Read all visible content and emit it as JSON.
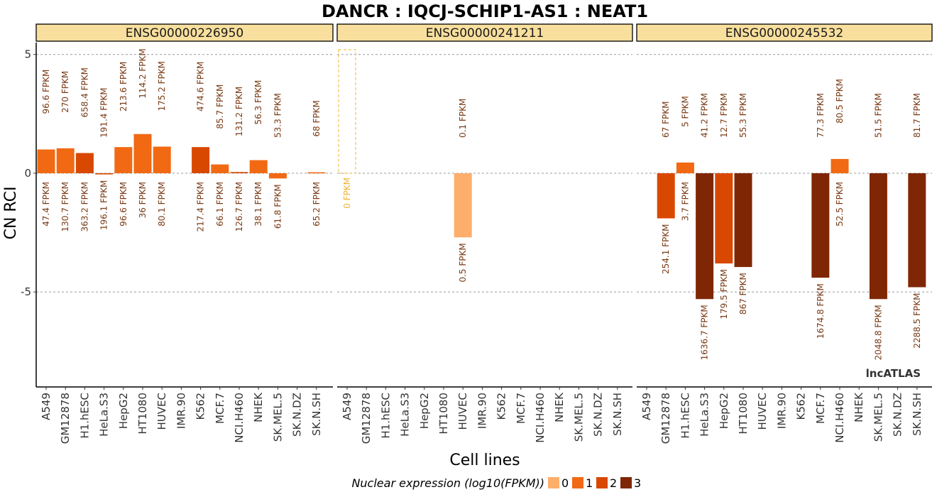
{
  "chart_data": {
    "type": "bar",
    "title": "DANCR : IQCJ-SCHIP1-AS1 : NEAT1",
    "xlabel": "Cell lines",
    "ylabel": "CN RCI",
    "ylim": [
      -9.0,
      5.5
    ],
    "yticks": [
      5,
      0,
      -5
    ],
    "ytick_labels": [
      "5",
      "0",
      "-5"
    ],
    "grid": "dashed horizontal at ticks",
    "categories": [
      "A549",
      "GM12878",
      "H1.hESC",
      "HeLa.S3",
      "HepG2",
      "HT1080",
      "HUVEC",
      "IMR.90",
      "K562",
      "MCF.7",
      "NCI.H460",
      "NHEK",
      "SK.MEL.5",
      "SK.N.DZ",
      "SK.N.SH"
    ],
    "legend": {
      "title": "Nuclear expression (log10(FPKM))",
      "position": "bottom",
      "items": [
        {
          "label": "0",
          "color": "#fdae6b"
        },
        {
          "label": "1",
          "color": "#f16913"
        },
        {
          "label": "2",
          "color": "#d94801"
        },
        {
          "label": "3",
          "color": "#7f2704"
        }
      ]
    },
    "watermark": "lncATLAS",
    "panels": [
      {
        "name": "ENSG00000226950",
        "bars": [
          {
            "cell": "A549",
            "value": 1.0,
            "level": 1,
            "top": "96.6 FPKM",
            "bottom": "47.4 FPKM"
          },
          {
            "cell": "GM12878",
            "value": 1.05,
            "level": 1,
            "top": "270 FPKM",
            "bottom": "130.7 FPKM"
          },
          {
            "cell": "H1.hESC",
            "value": 0.85,
            "level": 2,
            "top": "658.4 FPKM",
            "bottom": "363.2 FPKM"
          },
          {
            "cell": "HeLa.S3",
            "value": -0.05,
            "level": 2,
            "top": "191.4 FPKM",
            "bottom": "196.1 FPKM"
          },
          {
            "cell": "HepG2",
            "value": 1.1,
            "level": 1,
            "top": "213.6 FPKM",
            "bottom": "96.6 FPKM"
          },
          {
            "cell": "HT1080",
            "value": 1.65,
            "level": 1,
            "top": "114.2 FPKM",
            "bottom": "36 FPKM"
          },
          {
            "cell": "HUVEC",
            "value": 1.12,
            "level": 1,
            "top": "175.2 FPKM",
            "bottom": "80.1 FPKM"
          },
          {
            "cell": "K562",
            "value": 1.1,
            "level": 2,
            "top": "474.6 FPKM",
            "bottom": "217.4 FPKM"
          },
          {
            "cell": "MCF.7",
            "value": 0.37,
            "level": 1,
            "top": "85.7 FPKM",
            "bottom": "66.1 FPKM"
          },
          {
            "cell": "NCI.H460",
            "value": 0.05,
            "level": 2,
            "top": "131.2 FPKM",
            "bottom": "126.7 FPKM"
          },
          {
            "cell": "NHEK",
            "value": 0.55,
            "level": 1,
            "top": "56.3 FPKM",
            "bottom": "38.1 FPKM"
          },
          {
            "cell": "SK.MEL.5",
            "value": -0.22,
            "level": 1,
            "top": "53.3 FPKM",
            "bottom": "61.8 FPKM"
          },
          {
            "cell": "SK.N.SH",
            "value": 0.04,
            "level": 1,
            "top": "68 FPKM",
            "bottom": "65.2 FPKM"
          }
        ]
      },
      {
        "name": "ENSG00000241211",
        "bars": [
          {
            "cell": "A549",
            "value": 5.2,
            "level": 0,
            "dashed": true,
            "top": "",
            "bottom": "0 FPKM"
          },
          {
            "cell": "HUVEC",
            "value": -2.7,
            "level": 0,
            "top": "0.1 FPKM",
            "bottom": "0.5 FPKM"
          }
        ]
      },
      {
        "name": "ENSG00000245532",
        "bars": [
          {
            "cell": "GM12878",
            "value": -1.9,
            "level": 2,
            "top": "67 FPKM",
            "bottom": "254.1 FPKM"
          },
          {
            "cell": "H1.hESC",
            "value": 0.45,
            "level": 1,
            "top": "5 FPKM",
            "bottom": "3.7 FPKM"
          },
          {
            "cell": "HeLa.S3",
            "value": -5.3,
            "level": 3,
            "top": "41.2 FPKM",
            "bottom": "1636.7 FPKM"
          },
          {
            "cell": "HepG2",
            "value": -3.8,
            "level": 2,
            "top": "12.7 FPKM",
            "bottom": "179.5 FPKM"
          },
          {
            "cell": "HT1080",
            "value": -3.95,
            "level": 3,
            "top": "55.3 FPKM",
            "bottom": "867 FPKM"
          },
          {
            "cell": "MCF.7",
            "value": -4.4,
            "level": 3,
            "top": "77.3 FPKM",
            "bottom": "1674.8 FPKM"
          },
          {
            "cell": "NCI.H460",
            "value": 0.6,
            "level": 1,
            "top": "80.5 FPKM",
            "bottom": "52.5 FPKM"
          },
          {
            "cell": "SK.MEL.5",
            "value": -5.3,
            "level": 3,
            "top": "51.5 FPKM",
            "bottom": "2048.8 FPKM"
          },
          {
            "cell": "SK.N.SH",
            "value": -4.8,
            "level": 3,
            "top": "81.7 FPKM",
            "bottom": "2288.5 FPKM"
          }
        ]
      }
    ]
  }
}
